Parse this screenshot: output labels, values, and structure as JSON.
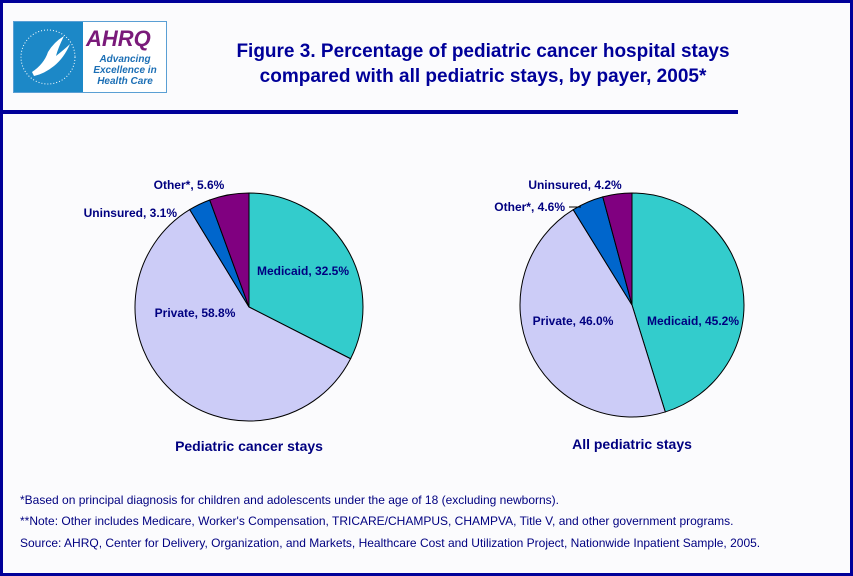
{
  "header": {
    "title_line1": "Figure 3. Percentage of pediatric cancer hospital stays",
    "title_line2": "compared with all pediatric stays, by payer, 2005*",
    "logo_text": "AHRQ",
    "logo_tagline": "Advancing Excellence in Health Care",
    "seal_text": "Department of Health & Human Services USA"
  },
  "chart_data": [
    {
      "type": "pie",
      "title": "Pediatric cancer stays",
      "slices": [
        {
          "label": "Medicaid, 32.5%",
          "name": "Medicaid",
          "value": 32.5,
          "color": "#33cccc"
        },
        {
          "label": "Private, 58.8%",
          "name": "Private",
          "value": 58.8,
          "color": "#ccccf7"
        },
        {
          "label": "Uninsured, 3.1%",
          "name": "Uninsured",
          "value": 3.1,
          "color": "#0066cc"
        },
        {
          "label": "Other*, 5.6%",
          "name": "Other*",
          "value": 5.6,
          "color": "#800080"
        }
      ]
    },
    {
      "type": "pie",
      "title": "All pediatric stays",
      "slices": [
        {
          "label": "Medicaid, 45.2%",
          "name": "Medicaid",
          "value": 45.2,
          "color": "#33cccc"
        },
        {
          "label": "Private, 46.0%",
          "name": "Private",
          "value": 46.0,
          "color": "#ccccf7"
        },
        {
          "label": "Other*, 4.6%",
          "name": "Other*",
          "value": 4.6,
          "color": "#0066cc"
        },
        {
          "label": "Uninsured, 4.2%",
          "name": "Uninsured",
          "value": 4.2,
          "color": "#800080"
        }
      ]
    }
  ],
  "notes": [
    "*Based on principal diagnosis for children and adolescents under the age of 18 (excluding newborns).",
    "**Note: Other includes Medicare, Worker's Compensation, TRICARE/CHAMPUS, CHAMPVA, Title V, and other government programs.",
    "Source: AHRQ, Center for Delivery, Organization, and Markets, Healthcare Cost and Utilization Project, Nationwide Inpatient Sample, 2005."
  ]
}
